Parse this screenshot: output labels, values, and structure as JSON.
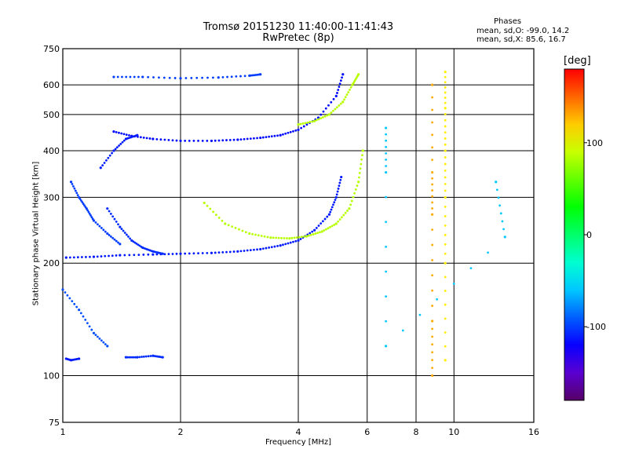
{
  "chart_data": {
    "type": "scatter",
    "title": "Tromsø 20151230 11:40:00-11:41:43",
    "subtitle": "RwPretec (8p)",
    "stats": {
      "heading": "Phases",
      "line_o": "mean, sd,O: -99.0, 14.2",
      "line_x": "mean, sd,X:  85.6, 16.7"
    },
    "xlabel": "Frequency [MHz]",
    "ylabel": "Stationary phase Virtual Height [km]",
    "x_scale": "log2",
    "y_scale": "log",
    "xlim": [
      1,
      16
    ],
    "ylim": [
      75,
      750
    ],
    "x_ticks": [
      {
        "v": 1,
        "label": "1"
      },
      {
        "v": 2,
        "label": "2"
      },
      {
        "v": 4,
        "label": "4"
      },
      {
        "v": 6,
        "label": "6"
      },
      {
        "v": 8,
        "label": "8"
      },
      {
        "v": 10,
        "label": "10"
      },
      {
        "v": 16,
        "label": "16"
      }
    ],
    "y_ticks": [
      {
        "v": 75,
        "label": "75"
      },
      {
        "v": 100,
        "label": "100"
      },
      {
        "v": 200,
        "label": "200"
      },
      {
        "v": 300,
        "label": "300"
      },
      {
        "v": 400,
        "label": "400"
      },
      {
        "v": 500,
        "label": "500"
      },
      {
        "v": 600,
        "label": "600"
      },
      {
        "v": 750,
        "label": "750"
      }
    ],
    "grid": true,
    "colorbar": {
      "label": "[deg]",
      "min": -180,
      "max": 180,
      "ticks": [
        {
          "v": 100,
          "label": "100"
        },
        {
          "v": 0,
          "label": "0"
        },
        {
          "v": -100,
          "label": "-100"
        }
      ]
    },
    "traces": [
      {
        "name": "",
        "phase": -110,
        "x": [
          1.02,
          1.2,
          1.4,
          1.7,
          2.0,
          2.4,
          2.8,
          3.2,
          3.6,
          4.0,
          4.4,
          4.8,
          5.0,
          5.15
        ],
        "y": [
          207,
          208,
          210,
          211,
          212,
          213,
          215,
          218,
          223,
          230,
          245,
          270,
          300,
          340
        ]
      },
      {
        "name": "",
        "phase": -115,
        "x": [
          1.35,
          1.5,
          1.7,
          2.0,
          2.4,
          2.8,
          3.2,
          3.6,
          4.0,
          4.5,
          5.0,
          5.2
        ],
        "y": [
          450,
          438,
          430,
          425,
          425,
          428,
          433,
          440,
          455,
          490,
          560,
          640
        ]
      },
      {
        "name": "",
        "phase": 85,
        "x": [
          2.3,
          2.6,
          3.0,
          3.4,
          3.8,
          4.2,
          4.6,
          5.0,
          5.4,
          5.7,
          5.85
        ],
        "y": [
          290,
          255,
          240,
          234,
          233,
          236,
          243,
          255,
          280,
          330,
          400
        ]
      },
      {
        "name": "",
        "phase": 85,
        "x": [
          4.0,
          4.4,
          4.8,
          5.2,
          5.5,
          5.7
        ],
        "y": [
          470,
          480,
          500,
          540,
          600,
          640
        ]
      },
      {
        "name": "",
        "phase": -100,
        "x": [
          1.05,
          1.1,
          1.15,
          1.2,
          1.3,
          1.4
        ],
        "y": [
          330,
          300,
          280,
          260,
          240,
          225
        ]
      },
      {
        "name": "",
        "phase": -105,
        "x": [
          1.3,
          1.4,
          1.5,
          1.6,
          1.7,
          1.8
        ],
        "y": [
          280,
          250,
          230,
          220,
          215,
          212
        ]
      },
      {
        "name": "",
        "phase": -110,
        "x": [
          1.25,
          1.35,
          1.45,
          1.55
        ],
        "y": [
          360,
          400,
          430,
          440
        ]
      },
      {
        "name": "",
        "phase": -100,
        "x": [
          1.35,
          1.6,
          2.0,
          2.5,
          3.0,
          3.2
        ],
        "y": [
          630,
          630,
          625,
          628,
          635,
          640
        ]
      },
      {
        "name": "",
        "phase": -95,
        "x": [
          1.0,
          1.1,
          1.2,
          1.3
        ],
        "y": [
          170,
          150,
          130,
          120
        ]
      },
      {
        "name": "",
        "phase": -110,
        "x": [
          1.02,
          1.05,
          1.1
        ],
        "y": [
          111,
          110,
          111
        ]
      },
      {
        "name": "",
        "phase": -105,
        "x": [
          1.45,
          1.55,
          1.7,
          1.8
        ],
        "y": [
          112,
          112,
          113,
          112
        ]
      },
      {
        "name": "",
        "phase": 110,
        "x": [
          9.5,
          9.5,
          9.5,
          9.5,
          9.5,
          9.5
        ],
        "y": [
          650,
          520,
          400,
          300,
          200,
          110
        ]
      },
      {
        "name": "",
        "phase": 130,
        "x": [
          8.8,
          8.8,
          8.8,
          8.8,
          8.8
        ],
        "y": [
          600,
          350,
          270,
          140,
          100
        ]
      },
      {
        "name": "",
        "phase": -60,
        "x": [
          6.7,
          6.7,
          6.7,
          13.5,
          12.8
        ],
        "y": [
          460,
          350,
          120,
          235,
          330
        ]
      }
    ]
  }
}
